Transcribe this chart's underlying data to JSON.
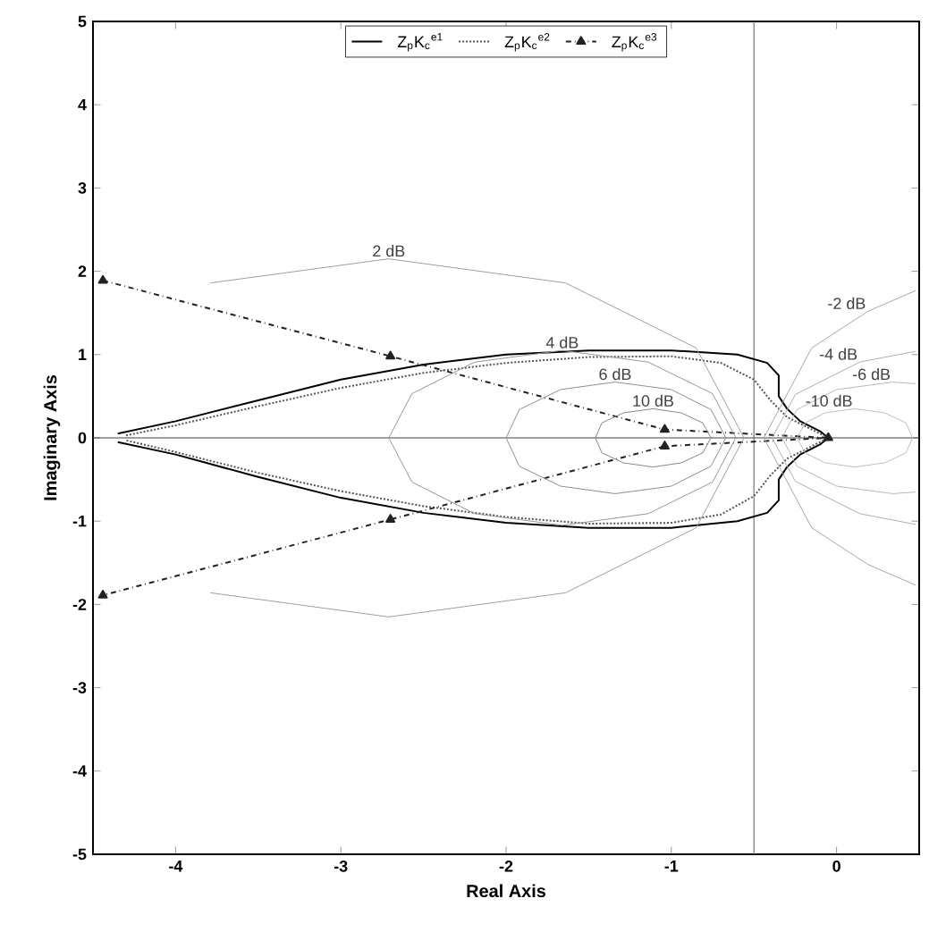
{
  "chart_data": {
    "type": "line",
    "xlabel": "Real Axis",
    "ylabel": "Imaginary Axis",
    "xlim": [
      -4.5,
      0.5
    ],
    "ylim": [
      -5,
      5
    ],
    "xticks": [
      -4,
      -3,
      -2,
      -1,
      0
    ],
    "yticks": [
      -5,
      -4,
      -3,
      -2,
      -1,
      0,
      1,
      2,
      3,
      4,
      5
    ],
    "legend": "top",
    "grid": false,
    "ref_lines": [
      {
        "axis": "x",
        "value": -0.5,
        "color": "#777777"
      },
      {
        "axis": "y",
        "value": 0,
        "color": "#444444"
      }
    ],
    "annotations": [
      {
        "text": "2 dB",
        "x": -2.71,
        "y": 2.15
      },
      {
        "text": "4 dB",
        "x": -1.66,
        "y": 1.05
      },
      {
        "text": "6 dB",
        "x": -1.34,
        "y": 0.67
      },
      {
        "text": "10 dB",
        "x": -1.11,
        "y": 0.35
      },
      {
        "text": "-2 dB",
        "x": 0.19,
        "y": 1.52
      },
      {
        "text": "-4 dB",
        "x": 0.14,
        "y": 0.91
      },
      {
        "text": "-6 dB",
        "x": 0.34,
        "y": 0.67
      },
      {
        "text": "-10 dB",
        "x": 0.11,
        "y": 0.35
      }
    ],
    "series": [
      {
        "name": "Z$_{p}$K$_{c}$$^{e1}$",
        "color": "#000000",
        "line_style": "solid",
        "marker": "none",
        "x": [
          -4.35,
          -4.0,
          -3.5,
          -3.0,
          -2.5,
          -2.0,
          -1.5,
          -1.0,
          -0.6,
          -0.42,
          -0.35,
          -0.35,
          -0.3,
          -0.22,
          -0.1,
          -0.05,
          -0.1,
          -0.22,
          -0.3,
          -0.35,
          -0.35,
          -0.42,
          -0.6,
          -1.0,
          -1.5,
          -2.0,
          -2.5,
          -3.0,
          -3.5,
          -4.0,
          -4.35
        ],
        "values": [
          0.05,
          0.2,
          0.45,
          0.7,
          0.88,
          1.0,
          1.05,
          1.05,
          1.0,
          0.9,
          0.75,
          0.5,
          0.35,
          0.2,
          0.08,
          0,
          -0.08,
          -0.2,
          -0.35,
          -0.5,
          -0.75,
          -0.9,
          -1.0,
          -1.08,
          -1.08,
          -1.02,
          -0.9,
          -0.72,
          -0.47,
          -0.2,
          -0.05
        ]
      },
      {
        "name": "Z$_{p}$K$_{c}$$^{e2}$",
        "color": "#555555",
        "line_style": "dotted",
        "marker": "none",
        "x": [
          -4.3,
          -4.0,
          -3.5,
          -3.0,
          -2.5,
          -2.0,
          -1.5,
          -1.0,
          -0.7,
          -0.5,
          -0.4,
          -0.3,
          -0.15,
          -0.05,
          -0.15,
          -0.3,
          -0.4,
          -0.5,
          -0.7,
          -1.0,
          -1.5,
          -2.0,
          -2.5,
          -3.0,
          -3.5,
          -4.0,
          -4.3
        ],
        "values": [
          0.03,
          0.15,
          0.38,
          0.6,
          0.78,
          0.9,
          0.97,
          0.98,
          0.9,
          0.7,
          0.45,
          0.25,
          0.1,
          0,
          -0.1,
          -0.25,
          -0.45,
          -0.7,
          -0.92,
          -1.02,
          -1.03,
          -0.95,
          -0.82,
          -0.64,
          -0.42,
          -0.17,
          -0.03
        ]
      },
      {
        "name": "Z$_{p}$K$_{c}$$^{e3}$",
        "color": "#222222",
        "line_style": "dashdotted",
        "marker": "triangle",
        "x": [
          -4.44,
          -2.7,
          -1.04,
          -0.05,
          -1.04,
          -2.7,
          -4.44
        ],
        "values": [
          1.89,
          0.98,
          0.1,
          0,
          -0.1,
          -0.98,
          -1.89
        ]
      },
      {
        "color": "#a0a0a0",
        "line_style": "solid",
        "marker": "none",
        "x": [
          -3.79,
          -2.71,
          -1.64,
          -0.85,
          -0.56,
          -0.85,
          -1.64,
          -2.71,
          -3.79
        ],
        "values": [
          -1.86,
          -2.15,
          -1.86,
          -1.08,
          0,
          1.08,
          1.86,
          2.15,
          1.86
        ]
      },
      {
        "color": "#989898",
        "line_style": "solid",
        "marker": "none",
        "x": [
          -2.71,
          -2.57,
          -2.19,
          -1.66,
          -1.14,
          -0.75,
          -0.61
        ],
        "values": [
          0,
          0.53,
          0.91,
          1.05,
          0.91,
          0.53,
          0
        ]
      },
      {
        "color": "#979797",
        "line_style": "solid",
        "marker": "none",
        "x": [
          -2.71,
          -2.57,
          -2.19,
          -1.66,
          -1.14,
          -0.75,
          -0.61
        ],
        "values": [
          0,
          -0.53,
          -0.91,
          -1.05,
          -0.91,
          -0.53,
          0
        ]
      },
      {
        "color": "#909090",
        "line_style": "solid",
        "marker": "none",
        "x": [
          -2.0,
          -1.92,
          -1.67,
          -1.34,
          -1.0,
          -0.76,
          -0.67
        ],
        "values": [
          0,
          0.34,
          0.58,
          0.67,
          0.58,
          0.34,
          0
        ]
      },
      {
        "color": "#8f8f8f",
        "line_style": "solid",
        "marker": "none",
        "x": [
          -2.0,
          -1.92,
          -1.67,
          -1.34,
          -1.0,
          -0.76,
          -0.67
        ],
        "values": [
          0,
          -0.34,
          -0.58,
          -0.67,
          -0.58,
          -0.34,
          0
        ]
      },
      {
        "color": "#888888",
        "line_style": "solid",
        "marker": "none",
        "x": [
          -1.46,
          -1.42,
          -1.29,
          -1.11,
          -0.94,
          -0.81,
          -0.76
        ],
        "values": [
          0,
          0.18,
          0.3,
          0.35,
          0.3,
          0.18,
          0
        ]
      },
      {
        "color": "#878787",
        "line_style": "solid",
        "marker": "none",
        "x": [
          -1.46,
          -1.42,
          -1.29,
          -1.11,
          -0.94,
          -0.81,
          -0.76
        ],
        "values": [
          0,
          -0.18,
          -0.3,
          -0.35,
          -0.3,
          -0.18,
          0
        ]
      },
      {
        "color": "#a8a8a8",
        "line_style": "solid",
        "marker": "none",
        "x": [
          -0.44,
          -0.15,
          0.19,
          0.48
        ],
        "values": [
          0,
          1.08,
          1.52,
          1.77
        ]
      },
      {
        "color": "#a7a7a7",
        "line_style": "solid",
        "marker": "none",
        "x": [
          -0.44,
          -0.15,
          0.19,
          0.48
        ],
        "values": [
          0,
          -1.08,
          -1.52,
          -1.77
        ]
      },
      {
        "color": "#b0b0b0",
        "line_style": "solid",
        "marker": "none",
        "x": [
          -0.39,
          -0.25,
          0.14,
          0.48
        ],
        "values": [
          0,
          0.52,
          0.91,
          1.04
        ]
      },
      {
        "color": "#afafaf",
        "line_style": "solid",
        "marker": "none",
        "x": [
          -0.39,
          -0.25,
          0.14,
          0.48
        ],
        "values": [
          0,
          -0.52,
          -0.91,
          -1.04
        ]
      },
      {
        "color": "#b8b8b8",
        "line_style": "solid",
        "marker": "none",
        "x": [
          -0.33,
          -0.24,
          0.0,
          0.34,
          0.48
        ],
        "values": [
          0,
          0.34,
          0.58,
          0.67,
          0.65
        ]
      },
      {
        "color": "#b7b7b7",
        "line_style": "solid",
        "marker": "none",
        "x": [
          -0.33,
          -0.24,
          0.0,
          0.34,
          0.48
        ],
        "values": [
          0,
          -0.34,
          -0.58,
          -0.67,
          -0.65
        ]
      },
      {
        "color": "#c0c0c0",
        "line_style": "solid",
        "marker": "none",
        "x": [
          -0.24,
          -0.19,
          -0.07,
          0.11,
          0.29,
          0.42,
          0.46
        ],
        "values": [
          0,
          0.18,
          0.3,
          0.35,
          0.3,
          0.18,
          0
        ]
      },
      {
        "color": "#bfbfbf",
        "line_style": "solid",
        "marker": "none",
        "x": [
          -0.24,
          -0.19,
          -0.07,
          0.11,
          0.29,
          0.42,
          0.46
        ],
        "values": [
          0,
          -0.18,
          -0.3,
          -0.35,
          -0.3,
          -0.18,
          0
        ]
      }
    ]
  }
}
